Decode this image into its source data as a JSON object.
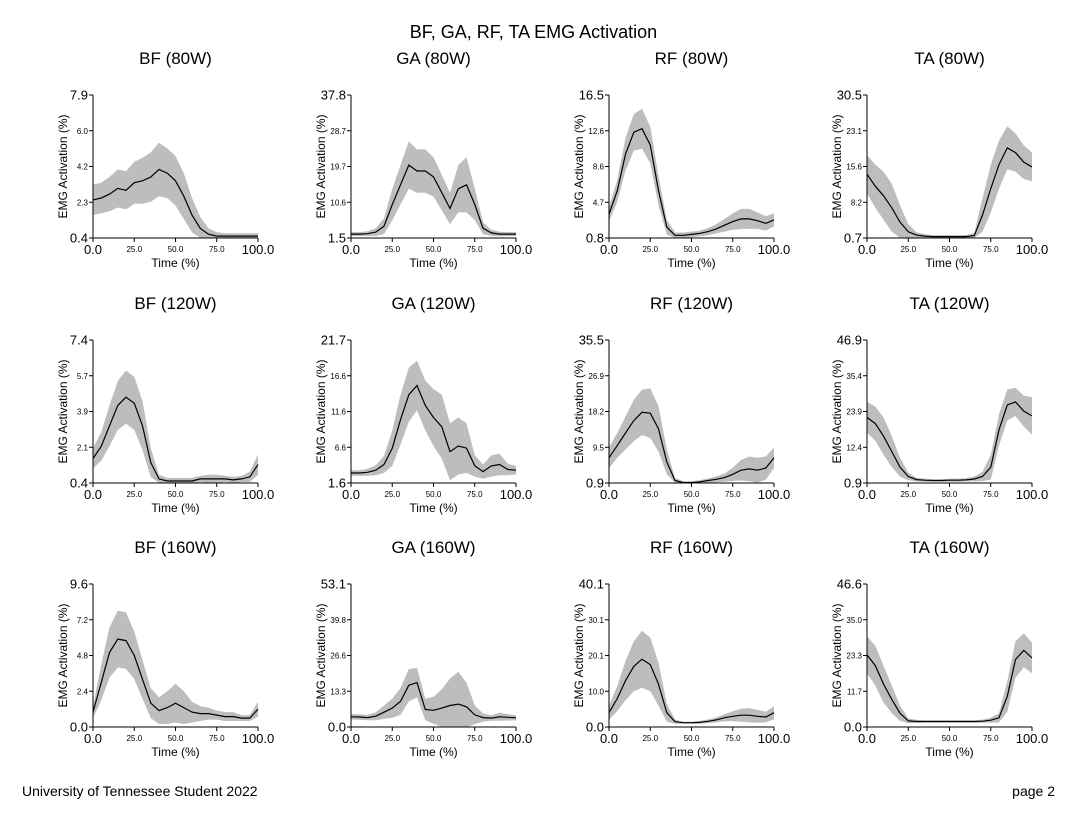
{
  "title": "BF, GA, RF, TA EMG Activation",
  "footer": {
    "left": "University of Tennessee Student 2022",
    "right": "page 2"
  },
  "band_color": "#bdbdbd",
  "line_color": "#000000",
  "chart_data": [
    {
      "type": "area",
      "title": "BF (80W)",
      "xlabel": "Time (%)",
      "ylabel": "EMG Activation (%)",
      "xlim": [
        0,
        100
      ],
      "ylim": [
        0.4,
        7.9
      ],
      "xticks": [
        "0.0",
        "25.0",
        "50.0",
        "75.0",
        "100.0"
      ],
      "yticks": [
        "0.4",
        "2.3",
        "4.2",
        "6.0",
        "7.9"
      ],
      "x": [
        0,
        5,
        10,
        15,
        20,
        25,
        30,
        35,
        40,
        45,
        50,
        55,
        60,
        65,
        70,
        75,
        80,
        85,
        90,
        95,
        100
      ],
      "mean": [
        2.4,
        2.5,
        2.7,
        3.0,
        2.9,
        3.3,
        3.4,
        3.6,
        4.0,
        3.8,
        3.4,
        2.6,
        1.6,
        0.9,
        0.6,
        0.5,
        0.5,
        0.5,
        0.5,
        0.5,
        0.5
      ],
      "sd": [
        0.8,
        0.8,
        0.9,
        1.0,
        1.0,
        1.1,
        1.2,
        1.3,
        1.4,
        1.3,
        1.3,
        1.2,
        0.9,
        0.6,
        0.3,
        0.2,
        0.15,
        0.15,
        0.15,
        0.15,
        0.15
      ]
    },
    {
      "type": "area",
      "title": "GA (80W)",
      "xlabel": "Time (%)",
      "ylabel": "EMG Activation (%)",
      "xlim": [
        0,
        100
      ],
      "ylim": [
        1.5,
        37.8
      ],
      "xticks": [
        "0.0",
        "25.0",
        "50.0",
        "75.0",
        "100.0"
      ],
      "yticks": [
        "1.5",
        "10.6",
        "19.7",
        "28.7",
        "37.8"
      ],
      "x": [
        0,
        5,
        10,
        15,
        20,
        25,
        30,
        35,
        40,
        45,
        50,
        55,
        60,
        65,
        70,
        75,
        80,
        85,
        90,
        95,
        100
      ],
      "mean": [
        2.5,
        2.5,
        2.6,
        3.0,
        4.5,
        10,
        15,
        20,
        18.5,
        18.5,
        17,
        13,
        9,
        14,
        15,
        10,
        4,
        2.8,
        2.5,
        2.5,
        2.5
      ],
      "sd": [
        0.5,
        0.5,
        0.6,
        1.0,
        2.0,
        4.0,
        5.0,
        6.0,
        5.5,
        5.5,
        5.0,
        4.5,
        4.0,
        6.0,
        7.0,
        4.0,
        1.5,
        0.8,
        0.6,
        0.5,
        0.5
      ]
    },
    {
      "type": "area",
      "title": "RF (80W)",
      "xlabel": "Time (%)",
      "ylabel": "EMG Activation (%)",
      "xlim": [
        0,
        100
      ],
      "ylim": [
        0.8,
        16.5
      ],
      "xticks": [
        "0.0",
        "25.0",
        "50.0",
        "75.0",
        "100.0"
      ],
      "yticks": [
        "0.8",
        "4.7",
        "8.6",
        "12.6",
        "16.5"
      ],
      "x": [
        0,
        5,
        10,
        15,
        20,
        25,
        30,
        35,
        40,
        45,
        50,
        55,
        60,
        65,
        70,
        75,
        80,
        85,
        90,
        95,
        100
      ],
      "mean": [
        3.4,
        6.0,
        10.0,
        12.4,
        12.8,
        11.0,
        6.0,
        2.0,
        1.1,
        1.1,
        1.2,
        1.3,
        1.5,
        1.8,
        2.2,
        2.6,
        2.9,
        2.9,
        2.7,
        2.4,
        2.8
      ],
      "sd": [
        0.8,
        1.2,
        1.8,
        2.0,
        2.2,
        2.0,
        1.6,
        0.8,
        0.3,
        0.3,
        0.3,
        0.3,
        0.4,
        0.5,
        0.7,
        0.9,
        1.1,
        1.1,
        0.9,
        0.8,
        0.7
      ]
    },
    {
      "type": "area",
      "title": "TA (80W)",
      "xlabel": "Time (%)",
      "ylabel": "EMG Activation (%)",
      "xlim": [
        0,
        100
      ],
      "ylim": [
        0.7,
        30.5
      ],
      "xticks": [
        "0.0",
        "25.0",
        "50.0",
        "75.0",
        "100.0"
      ],
      "yticks": [
        "0.7",
        "8.2",
        "15.6",
        "23.1",
        "30.5"
      ],
      "x": [
        0,
        5,
        10,
        15,
        20,
        25,
        30,
        35,
        40,
        45,
        50,
        55,
        60,
        65,
        70,
        75,
        80,
        85,
        90,
        95,
        100
      ],
      "mean": [
        14.0,
        11.5,
        9.5,
        7.0,
        4.0,
        2.0,
        1.3,
        1.1,
        1.0,
        1.0,
        1.0,
        1.0,
        1.0,
        1.2,
        5.5,
        11.0,
        16.0,
        19.5,
        18.5,
        16.5,
        15.5
      ],
      "sd": [
        4.0,
        4.5,
        5.0,
        5.0,
        3.5,
        1.6,
        0.6,
        0.4,
        0.3,
        0.3,
        0.3,
        0.3,
        0.3,
        0.6,
        3.5,
        5.0,
        5.0,
        4.5,
        4.0,
        3.5,
        3.0
      ]
    },
    {
      "type": "area",
      "title": "BF (120W)",
      "xlabel": "Time (%)",
      "ylabel": "EMG Activation (%)",
      "xlim": [
        0,
        100
      ],
      "ylim": [
        0.4,
        7.4
      ],
      "xticks": [
        "0.0",
        "25.0",
        "50.0",
        "75.0",
        "100.0"
      ],
      "yticks": [
        "0.4",
        "2.1",
        "3.9",
        "5.7",
        "7.4"
      ],
      "x": [
        0,
        5,
        10,
        15,
        20,
        25,
        30,
        35,
        40,
        45,
        50,
        55,
        60,
        65,
        70,
        75,
        80,
        85,
        90,
        95,
        100
      ],
      "mean": [
        1.6,
        2.2,
        3.2,
        4.2,
        4.6,
        4.3,
        3.2,
        1.4,
        0.6,
        0.5,
        0.5,
        0.5,
        0.5,
        0.6,
        0.6,
        0.6,
        0.6,
        0.55,
        0.6,
        0.7,
        1.3
      ],
      "sd": [
        0.5,
        0.7,
        1.0,
        1.2,
        1.3,
        1.3,
        1.2,
        0.7,
        0.2,
        0.15,
        0.15,
        0.15,
        0.15,
        0.15,
        0.2,
        0.2,
        0.15,
        0.15,
        0.15,
        0.25,
        0.5
      ]
    },
    {
      "type": "area",
      "title": "GA (120W)",
      "xlabel": "Time (%)",
      "ylabel": "EMG Activation (%)",
      "xlim": [
        0,
        100
      ],
      "ylim": [
        1.6,
        21.7
      ],
      "xticks": [
        "0.0",
        "25.0",
        "50.0",
        "75.0",
        "100.0"
      ],
      "yticks": [
        "1.6",
        "6.6",
        "11.6",
        "16.6",
        "21.7"
      ],
      "x": [
        0,
        5,
        10,
        15,
        20,
        25,
        30,
        35,
        40,
        45,
        50,
        55,
        60,
        65,
        70,
        75,
        80,
        85,
        90,
        95,
        100
      ],
      "mean": [
        3.0,
        3.0,
        3.1,
        3.4,
        4.2,
        6.5,
        10.5,
        14.0,
        15.3,
        12.5,
        10.8,
        9.5,
        6.0,
        6.8,
        6.5,
        4.0,
        3.2,
        4.0,
        4.2,
        3.5,
        3.4
      ],
      "sd": [
        0.4,
        0.4,
        0.5,
        0.7,
        1.2,
        2.5,
        3.5,
        3.8,
        3.5,
        3.5,
        4.0,
        4.5,
        4.0,
        4.0,
        3.5,
        1.5,
        1.0,
        1.5,
        1.5,
        0.8,
        0.6
      ]
    },
    {
      "type": "area",
      "title": "RF (120W)",
      "xlabel": "Time (%)",
      "ylabel": "EMG Activation (%)",
      "xlim": [
        0,
        100
      ],
      "ylim": [
        0.9,
        35.5
      ],
      "xticks": [
        "0.0",
        "25.0",
        "50.0",
        "75.0",
        "100.0"
      ],
      "yticks": [
        "0.9",
        "9.5",
        "18.2",
        "26.9",
        "35.5"
      ],
      "x": [
        0,
        5,
        10,
        15,
        20,
        25,
        30,
        35,
        40,
        45,
        50,
        55,
        60,
        65,
        70,
        75,
        80,
        85,
        90,
        95,
        100
      ],
      "mean": [
        7.0,
        10.0,
        13.0,
        16.0,
        18.0,
        17.8,
        14.0,
        6.0,
        1.5,
        1.0,
        1.0,
        1.2,
        1.5,
        1.8,
        2.2,
        3.0,
        4.0,
        4.3,
        4.0,
        4.5,
        7.0
      ],
      "sd": [
        2.5,
        3.0,
        4.0,
        5.0,
        5.5,
        6.0,
        5.5,
        3.0,
        0.6,
        0.3,
        0.3,
        0.4,
        0.5,
        0.7,
        1.0,
        1.6,
        2.5,
        3.0,
        3.0,
        2.8,
        2.5
      ]
    },
    {
      "type": "area",
      "title": "TA (120W)",
      "xlabel": "Time (%)",
      "ylabel": "EMG Activation (%)",
      "xlim": [
        0,
        100
      ],
      "ylim": [
        0.9,
        46.9
      ],
      "xticks": [
        "0.0",
        "25.0",
        "50.0",
        "75.0",
        "100.0"
      ],
      "yticks": [
        "0.9",
        "12.4",
        "23.9",
        "35.4",
        "46.9"
      ],
      "x": [
        0,
        5,
        10,
        15,
        20,
        25,
        30,
        35,
        40,
        45,
        50,
        55,
        60,
        65,
        70,
        75,
        80,
        85,
        90,
        95,
        100
      ],
      "mean": [
        22.0,
        20.0,
        16.0,
        11.0,
        6.0,
        3.0,
        2.0,
        1.8,
        1.7,
        1.7,
        1.8,
        1.8,
        1.9,
        2.2,
        3.0,
        6.0,
        18.0,
        26.0,
        27.0,
        24.0,
        22.5
      ],
      "sd": [
        5.0,
        5.5,
        6.0,
        5.0,
        3.0,
        1.2,
        0.6,
        0.5,
        0.4,
        0.4,
        0.5,
        0.5,
        0.5,
        0.8,
        1.5,
        4.0,
        5.0,
        5.0,
        4.5,
        5.0,
        6.0
      ]
    },
    {
      "type": "area",
      "title": "BF (160W)",
      "xlabel": "Time (%)",
      "ylabel": "EMG Activation (%)",
      "xlim": [
        0,
        100
      ],
      "ylim": [
        0.0,
        9.6
      ],
      "xticks": [
        "0.0",
        "25.0",
        "50.0",
        "75.0",
        "100.0"
      ],
      "yticks": [
        "0.0",
        "2.4",
        "4.8",
        "7.2",
        "9.6"
      ],
      "x": [
        0,
        5,
        10,
        15,
        20,
        25,
        30,
        35,
        40,
        45,
        50,
        55,
        60,
        65,
        70,
        75,
        80,
        85,
        90,
        95,
        100
      ],
      "mean": [
        1.0,
        3.0,
        5.0,
        5.9,
        5.8,
        4.8,
        3.2,
        1.6,
        1.1,
        1.3,
        1.6,
        1.3,
        1.0,
        0.9,
        0.9,
        0.8,
        0.7,
        0.7,
        0.6,
        0.6,
        1.2
      ],
      "sd": [
        0.4,
        1.2,
        1.7,
        1.9,
        1.9,
        1.6,
        1.3,
        1.0,
        0.9,
        1.1,
        1.3,
        1.1,
        0.7,
        0.5,
        0.4,
        0.3,
        0.3,
        0.3,
        0.2,
        0.2,
        0.5
      ]
    },
    {
      "type": "area",
      "title": "GA (160W)",
      "xlabel": "Time (%)",
      "ylabel": "EMG Activation (%)",
      "xlim": [
        0,
        100
      ],
      "ylim": [
        0.0,
        53.1
      ],
      "xticks": [
        "0.0",
        "25.0",
        "50.0",
        "75.0",
        "100.0"
      ],
      "yticks": [
        "0.0",
        "13.3",
        "26.6",
        "39.8",
        "53.1"
      ],
      "x": [
        0,
        5,
        10,
        15,
        20,
        25,
        30,
        35,
        40,
        45,
        50,
        55,
        60,
        65,
        70,
        75,
        80,
        85,
        90,
        95,
        100
      ],
      "mean": [
        3.8,
        3.7,
        3.5,
        4.0,
        5.5,
        7.0,
        9.5,
        15.5,
        16.5,
        6.5,
        6.2,
        7.0,
        8.0,
        8.5,
        7.5,
        4.5,
        3.5,
        3.3,
        3.8,
        3.6,
        3.4
      ],
      "sd": [
        1.0,
        1.0,
        1.0,
        1.5,
        2.5,
        3.5,
        5.0,
        6.0,
        5.5,
        4.0,
        5.0,
        7.0,
        10.0,
        12.0,
        9.0,
        3.5,
        1.5,
        1.0,
        1.5,
        1.2,
        1.0
      ]
    },
    {
      "type": "area",
      "title": "RF (160W)",
      "xlabel": "Time (%)",
      "ylabel": "EMG Activation (%)",
      "xlim": [
        0,
        100
      ],
      "ylim": [
        0.0,
        40.1
      ],
      "xticks": [
        "0.0",
        "25.0",
        "50.0",
        "75.0",
        "100.0"
      ],
      "yticks": [
        "0.0",
        "10.0",
        "20.1",
        "30.1",
        "40.1"
      ],
      "x": [
        0,
        5,
        10,
        15,
        20,
        25,
        30,
        35,
        40,
        45,
        50,
        55,
        60,
        65,
        70,
        75,
        80,
        85,
        90,
        95,
        100
      ],
      "mean": [
        4.0,
        8.0,
        13.0,
        17.0,
        19.0,
        17.5,
        12.0,
        4.0,
        1.5,
        1.2,
        1.2,
        1.3,
        1.6,
        2.0,
        2.6,
        3.0,
        3.3,
        3.3,
        3.0,
        2.8,
        4.0
      ],
      "sd": [
        2.0,
        3.5,
        5.5,
        7.0,
        8.0,
        7.5,
        6.0,
        2.5,
        0.6,
        0.3,
        0.3,
        0.4,
        0.5,
        0.7,
        1.0,
        1.4,
        1.8,
        2.0,
        1.8,
        1.5,
        1.8
      ]
    },
    {
      "type": "area",
      "title": "TA (160W)",
      "xlabel": "Time (%)",
      "ylabel": "EMG Activation (%)",
      "xlim": [
        0,
        100
      ],
      "ylim": [
        0.0,
        46.6
      ],
      "xticks": [
        "0.0",
        "25.0",
        "50.0",
        "75.0",
        "100.0"
      ],
      "yticks": [
        "0.0",
        "11.7",
        "23.3",
        "35.0",
        "46.6"
      ],
      "x": [
        0,
        5,
        10,
        15,
        20,
        25,
        30,
        35,
        40,
        45,
        50,
        55,
        60,
        65,
        70,
        75,
        80,
        85,
        90,
        95,
        100
      ],
      "mean": [
        23.5,
        20.0,
        14.0,
        9.0,
        4.5,
        2.0,
        1.8,
        1.8,
        1.8,
        1.8,
        1.8,
        1.8,
        1.8,
        1.8,
        1.9,
        2.2,
        3.0,
        10.0,
        22.0,
        25.0,
        22.5
      ],
      "sd": [
        6.0,
        6.5,
        6.0,
        4.5,
        2.5,
        0.8,
        0.5,
        0.4,
        0.4,
        0.4,
        0.4,
        0.4,
        0.4,
        0.4,
        0.5,
        0.8,
        1.5,
        5.0,
        6.0,
        5.5,
        5.0
      ]
    }
  ]
}
